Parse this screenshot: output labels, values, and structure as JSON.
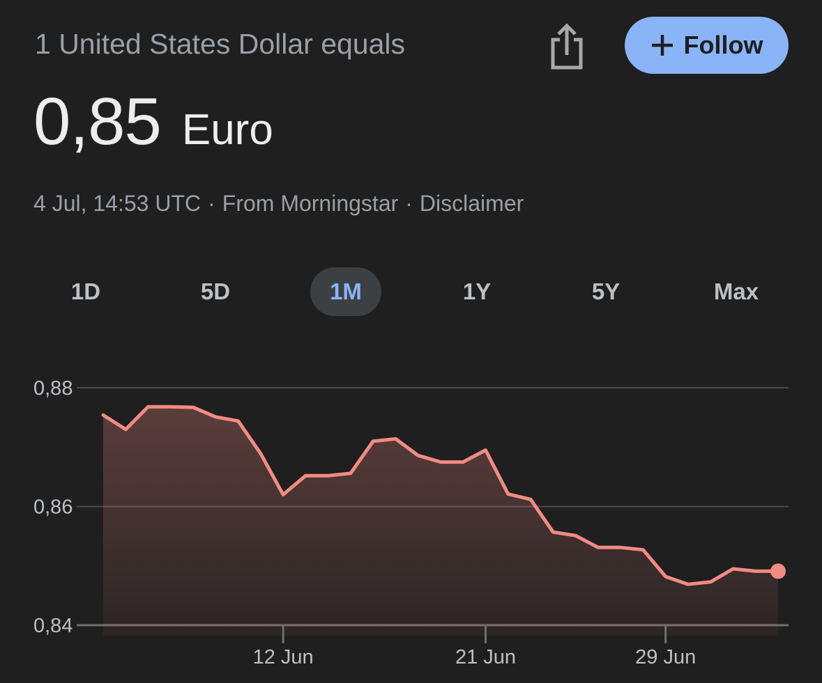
{
  "header": {
    "label": "1 United States Dollar equals",
    "follow_label": "Follow"
  },
  "rate": {
    "value": "0,85",
    "unit": "Euro"
  },
  "meta": {
    "timestamp": "4 Jul, 14:53 UTC",
    "source": "From Morningstar",
    "disclaimer": "Disclaimer"
  },
  "tabs": [
    {
      "label": "1D"
    },
    {
      "label": "5D"
    },
    {
      "label": "1M",
      "active": true
    },
    {
      "label": "1Y"
    },
    {
      "label": "5Y"
    },
    {
      "label": "Max"
    }
  ],
  "colors": {
    "line": "#f28b82",
    "accent": "#8ab4f8",
    "background": "#1f1f1f"
  },
  "chart_data": {
    "type": "area",
    "title": "",
    "xlabel": "",
    "ylabel": "",
    "ylim": [
      0.84,
      0.88
    ],
    "y_ticks": [
      "0,88",
      "0,86",
      "0,84"
    ],
    "x_ticks": [
      "12 Jun",
      "21 Jun",
      "29 Jun"
    ],
    "grid": true,
    "x": [
      "4 Jun",
      "5 Jun",
      "6 Jun",
      "7 Jun",
      "8 Jun",
      "9 Jun",
      "10 Jun",
      "11 Jun",
      "12 Jun",
      "13 Jun",
      "14 Jun",
      "15 Jun",
      "16 Jun",
      "17 Jun",
      "18 Jun",
      "19 Jun",
      "20 Jun",
      "21 Jun",
      "22 Jun",
      "23 Jun",
      "24 Jun",
      "25 Jun",
      "26 Jun",
      "27 Jun",
      "28 Jun",
      "29 Jun",
      "30 Jun",
      "1 Jul",
      "2 Jul",
      "3 Jul",
      "4 Jul"
    ],
    "series": [
      {
        "values": [
          0.8754,
          0.873,
          0.8768,
          0.8768,
          0.8767,
          0.8751,
          0.8744,
          0.8689,
          0.862,
          0.8652,
          0.8652,
          0.8656,
          0.871,
          0.8714,
          0.8686,
          0.8675,
          0.8675,
          0.8695,
          0.8621,
          0.8612,
          0.8557,
          0.8551,
          0.8531,
          0.8531,
          0.8527,
          0.8482,
          0.8469,
          0.8473,
          0.8495,
          0.8491,
          0.8491
        ]
      }
    ]
  }
}
